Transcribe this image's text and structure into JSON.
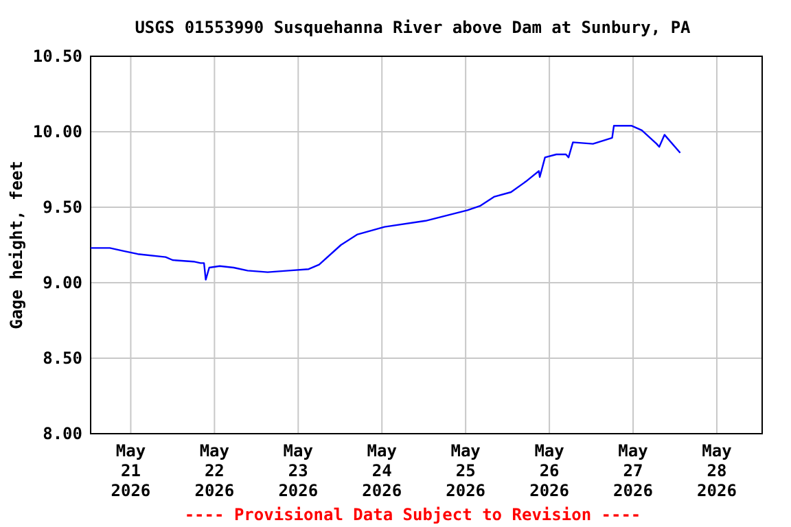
{
  "chart_data": {
    "type": "line",
    "title": "USGS 01553990 Susquehanna River above Dam at Sunbury, PA",
    "ylabel": "Gage height, feet",
    "annotations": [
      "---- Provisional Data Subject to Revision ----"
    ],
    "xlim": [
      "2026-05-20T12:30",
      "2026-05-28T13:00"
    ],
    "xticks": [
      {
        "value": "2026-05-21",
        "label": "May\n21\n2026"
      },
      {
        "value": "2026-05-22",
        "label": "May\n22\n2026"
      },
      {
        "value": "2026-05-23",
        "label": "May\n23\n2026"
      },
      {
        "value": "2026-05-24",
        "label": "May\n24\n2026"
      },
      {
        "value": "2026-05-25",
        "label": "May\n25\n2026"
      },
      {
        "value": "2026-05-26",
        "label": "May\n26\n2026"
      },
      {
        "value": "2026-05-27",
        "label": "May\n27\n2026"
      },
      {
        "value": "2026-05-28",
        "label": "May\n28\n2026"
      }
    ],
    "ylim": [
      8,
      10.5
    ],
    "yticks": [
      {
        "value": 8,
        "label": "8.00"
      },
      {
        "value": 8.5,
        "label": "8.50"
      },
      {
        "value": 9,
        "label": "9.00"
      },
      {
        "value": 9.5,
        "label": "9.50"
      },
      {
        "value": 10,
        "label": "10.00"
      },
      {
        "value": 10.5,
        "label": "10.50"
      }
    ],
    "grid": true,
    "marker": "none",
    "line_style": "solid",
    "x": [
      "2026-05-20T12:30",
      "2026-05-20T18:00",
      "2026-05-20T22:00",
      "2026-05-21T02:00",
      "2026-05-21T10:00",
      "2026-05-21T12:00",
      "2026-05-21T18:00",
      "2026-05-21T20:00",
      "2026-05-21T21:00",
      "2026-05-21T21:30",
      "2026-05-21T22:30",
      "2026-05-22T01:30",
      "2026-05-22T05:30",
      "2026-05-22T09:30",
      "2026-05-22T15:15",
      "2026-05-22T21:15",
      "2026-05-23T03:00",
      "2026-05-23T06:00",
      "2026-05-23T12:15",
      "2026-05-23T17:00",
      "2026-05-24T00:45",
      "2026-05-24T12:30",
      "2026-05-25T00:30",
      "2026-05-25T04:15",
      "2026-05-25T08:15",
      "2026-05-25T13:00",
      "2026-05-25T17:15",
      "2026-05-25T21:00",
      "2026-05-25T21:15",
      "2026-05-25T22:45",
      "2026-05-26T02:00",
      "2026-05-26T04:45",
      "2026-05-26T05:30",
      "2026-05-26T06:45",
      "2026-05-26T12:30",
      "2026-05-26T18:00",
      "2026-05-26T18:30",
      "2026-05-26T23:30",
      "2026-05-27T02:30",
      "2026-05-27T06:45",
      "2026-05-27T07:30",
      "2026-05-27T09:00",
      "2026-05-27T13:30"
    ],
    "series": [
      {
        "color": "#0000ff",
        "values": [
          9.23,
          9.23,
          9.21,
          9.19,
          9.17,
          9.15,
          9.14,
          9.13,
          9.13,
          9.02,
          9.1,
          9.11,
          9.1,
          9.08,
          9.07,
          9.08,
          9.09,
          9.12,
          9.25,
          9.32,
          9.37,
          9.41,
          9.48,
          9.51,
          9.57,
          9.6,
          9.67,
          9.74,
          9.7,
          9.83,
          9.85,
          9.85,
          9.83,
          9.93,
          9.92,
          9.96,
          10.04,
          10.04,
          10.01,
          9.92,
          9.9,
          9.98,
          9.86
        ]
      }
    ]
  }
}
